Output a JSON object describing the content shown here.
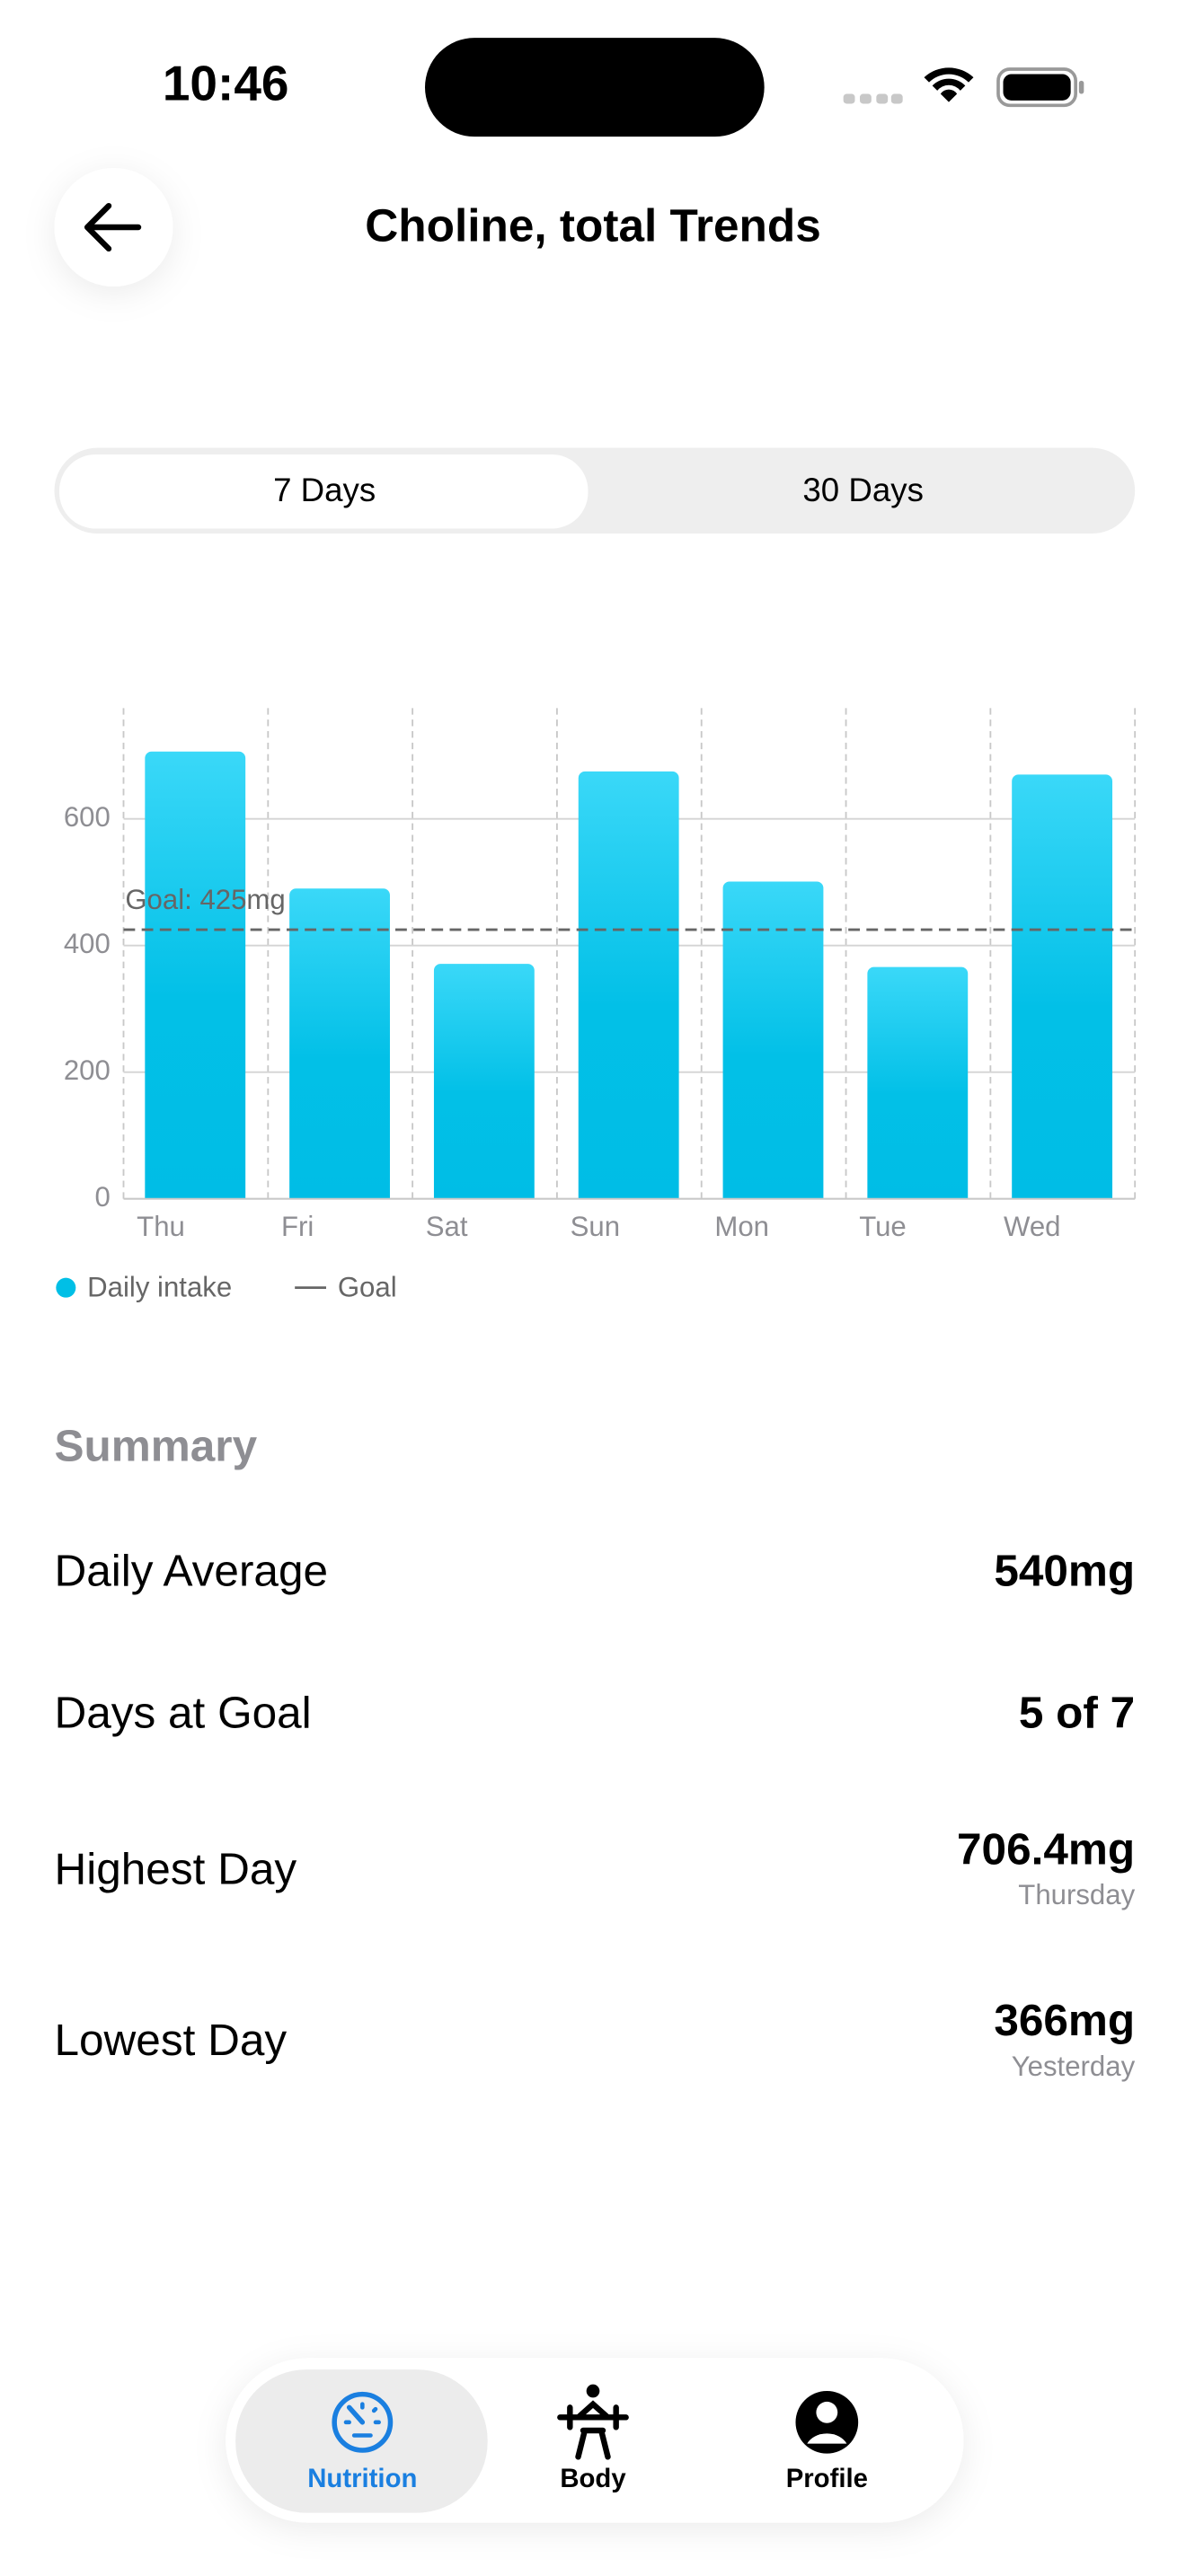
{
  "status_bar": {
    "time": "10:46"
  },
  "header": {
    "title": "Choline, total Trends"
  },
  "range_tabs": {
    "options": [
      "7 Days",
      "30 Days"
    ],
    "selected": 0
  },
  "chart_data": {
    "type": "bar",
    "categories": [
      "Thu",
      "Fri",
      "Sat",
      "Sun",
      "Mon",
      "Tue",
      "Wed"
    ],
    "series": [
      {
        "name": "Daily intake",
        "color": "#00bfe6",
        "values": [
          706.4,
          490,
          371,
          675,
          501,
          366,
          670
        ]
      }
    ],
    "goal": {
      "value": 425,
      "label": "Goal: 425mg",
      "name": "Goal",
      "color": "#666666"
    },
    "ylim": [
      0,
      775
    ],
    "yticks": [
      0,
      200,
      400,
      600
    ],
    "grid": true
  },
  "summary": {
    "title": "Summary",
    "rows": [
      {
        "label": "Daily Average",
        "value": "540mg"
      },
      {
        "label": "Days at Goal",
        "value": "5 of 7"
      },
      {
        "label": "Highest Day",
        "value": "706.4mg",
        "note": "Thursday"
      },
      {
        "label": "Lowest Day",
        "value": "366mg",
        "note": "Yesterday"
      }
    ]
  },
  "tab_bar": {
    "items": [
      "Nutrition",
      "Body",
      "Profile"
    ],
    "selected": 0
  }
}
